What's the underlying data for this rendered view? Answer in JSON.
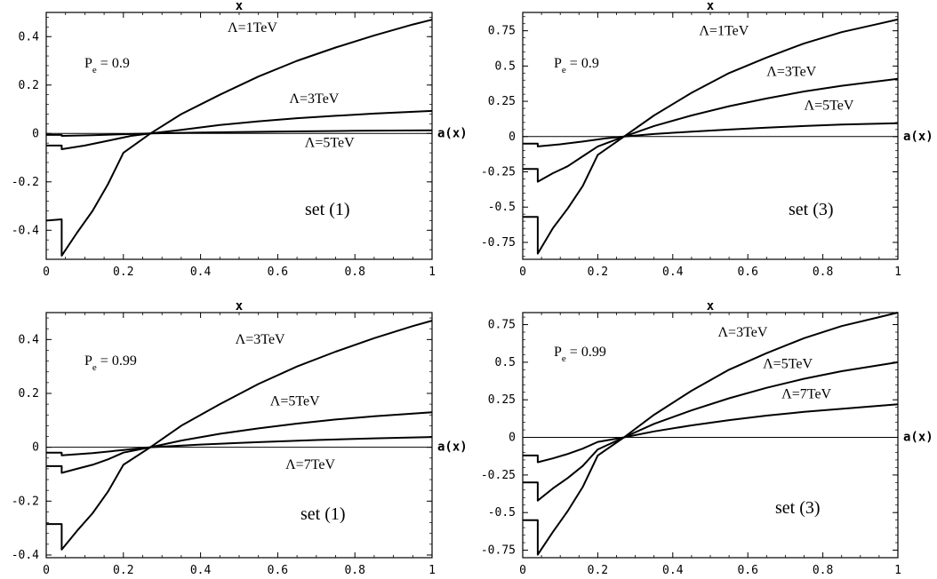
{
  "chart_data": [
    {
      "type": "line",
      "xlabel": "x",
      "ylabel": "a(x)",
      "xlim": [
        0,
        1
      ],
      "ylim": [
        -0.52,
        0.5
      ],
      "x_ticks": [
        0,
        0.2,
        0.4,
        0.6,
        0.8,
        1
      ],
      "x_tick_labels": [
        "0",
        "0.2",
        "0.4",
        "0.6",
        "0.8",
        "1"
      ],
      "y_ticks": [
        -0.4,
        -0.2,
        0,
        0.2,
        0.4
      ],
      "y_tick_labels": [
        "-0.4",
        "-0.2",
        "0",
        "0.2",
        "0.4"
      ],
      "polarization": {
        "main": "P",
        "sub": "e",
        "value": "= 0.9"
      },
      "set_label": "set (1)",
      "series": [
        {
          "name": "Λ=1TeV",
          "x": [
            0,
            0.04,
            0.04,
            0.08,
            0.12,
            0.16,
            0.2,
            0.27,
            0.35,
            0.45,
            0.55,
            0.65,
            0.75,
            0.85,
            0.95,
            1.0
          ],
          "y": [
            -0.36,
            -0.355,
            -0.505,
            -0.41,
            -0.32,
            -0.21,
            -0.08,
            0.0,
            0.08,
            0.16,
            0.235,
            0.3,
            0.355,
            0.405,
            0.45,
            0.47
          ]
        },
        {
          "name": "Λ=3TeV",
          "x": [
            0,
            0.04,
            0.04,
            0.1,
            0.16,
            0.22,
            0.27,
            0.35,
            0.45,
            0.55,
            0.65,
            0.75,
            0.85,
            1.0
          ],
          "y": [
            -0.05,
            -0.05,
            -0.065,
            -0.05,
            -0.03,
            -0.01,
            0.0,
            0.015,
            0.035,
            0.05,
            0.063,
            0.073,
            0.082,
            0.093
          ]
        },
        {
          "name": "Λ=5TeV",
          "x": [
            0,
            0.04,
            0.04,
            0.12,
            0.27,
            0.4,
            0.6,
            0.8,
            1.0
          ],
          "y": [
            -0.006,
            -0.006,
            -0.01,
            -0.007,
            0.0,
            0.004,
            0.008,
            0.011,
            0.013
          ]
        }
      ],
      "labels": [
        {
          "text": "Λ=1TeV",
          "x": 0.47,
          "y": 0.42
        },
        {
          "text": "Λ=3TeV",
          "x": 0.63,
          "y": 0.125
        },
        {
          "text": "Λ=5TeV",
          "x": 0.67,
          "y": -0.055
        }
      ]
    },
    {
      "type": "line",
      "xlabel": "x",
      "ylabel": "a(x)",
      "xlim": [
        0,
        1
      ],
      "ylim": [
        -0.87,
        0.88
      ],
      "x_ticks": [
        0,
        0.2,
        0.4,
        0.6,
        0.8,
        1
      ],
      "x_tick_labels": [
        "0",
        "0.2",
        "0.4",
        "0.6",
        "0.8",
        "1"
      ],
      "y_ticks": [
        -0.75,
        -0.5,
        -0.25,
        0,
        0.25,
        0.5,
        0.75
      ],
      "y_tick_labels": [
        "-0.75",
        "-0.5",
        "-0.25",
        "0",
        "0.25",
        "0.5",
        "0.75"
      ],
      "polarization": {
        "main": "P",
        "sub": "e",
        "value": "= 0.9"
      },
      "set_label": "set (3)",
      "series": [
        {
          "name": "Λ=1TeV",
          "x": [
            0,
            0.04,
            0.04,
            0.08,
            0.12,
            0.16,
            0.2,
            0.27,
            0.35,
            0.45,
            0.55,
            0.65,
            0.75,
            0.85,
            0.95,
            1.0
          ],
          "y": [
            -0.57,
            -0.57,
            -0.83,
            -0.65,
            -0.51,
            -0.35,
            -0.13,
            0.0,
            0.15,
            0.31,
            0.45,
            0.56,
            0.66,
            0.74,
            0.8,
            0.83
          ]
        },
        {
          "name": "Λ=3TeV",
          "x": [
            0,
            0.04,
            0.04,
            0.08,
            0.12,
            0.16,
            0.2,
            0.27,
            0.35,
            0.45,
            0.55,
            0.65,
            0.75,
            0.85,
            1.0
          ],
          "y": [
            -0.23,
            -0.23,
            -0.32,
            -0.26,
            -0.21,
            -0.14,
            -0.07,
            0.0,
            0.075,
            0.15,
            0.215,
            0.27,
            0.32,
            0.36,
            0.41
          ]
        },
        {
          "name": "Λ=5TeV",
          "x": [
            0,
            0.04,
            0.04,
            0.1,
            0.16,
            0.22,
            0.27,
            0.35,
            0.45,
            0.55,
            0.65,
            0.75,
            0.85,
            1.0
          ],
          "y": [
            -0.05,
            -0.05,
            -0.07,
            -0.055,
            -0.035,
            -0.013,
            0.0,
            0.018,
            0.035,
            0.05,
            0.063,
            0.075,
            0.085,
            0.095
          ]
        }
      ],
      "labels": [
        {
          "text": "Λ=1TeV",
          "x": 0.47,
          "y": 0.72
        },
        {
          "text": "Λ=3TeV",
          "x": 0.65,
          "y": 0.43
        },
        {
          "text": "Λ=5TeV",
          "x": 0.75,
          "y": 0.19
        }
      ]
    },
    {
      "type": "line",
      "xlabel": "x",
      "ylabel": "a(x)",
      "xlim": [
        0,
        1
      ],
      "ylim": [
        -0.41,
        0.5
      ],
      "x_ticks": [
        0,
        0.2,
        0.4,
        0.6,
        0.8,
        1
      ],
      "x_tick_labels": [
        "0",
        "0.2",
        "0.4",
        "0.6",
        "0.8",
        "1"
      ],
      "y_ticks": [
        -0.4,
        -0.2,
        0,
        0.2,
        0.4
      ],
      "y_tick_labels": [
        "-0.4",
        "-0.2",
        "0",
        "0.2",
        "0.4"
      ],
      "polarization": {
        "main": "P",
        "sub": "e",
        "value": "= 0.99"
      },
      "set_label": "set (1)",
      "series": [
        {
          "name": "Λ=3TeV",
          "x": [
            0,
            0.04,
            0.04,
            0.08,
            0.12,
            0.16,
            0.2,
            0.27,
            0.35,
            0.45,
            0.55,
            0.65,
            0.75,
            0.85,
            0.95,
            1.0
          ],
          "y": [
            -0.285,
            -0.285,
            -0.38,
            -0.31,
            -0.245,
            -0.165,
            -0.065,
            0.0,
            0.08,
            0.16,
            0.235,
            0.3,
            0.355,
            0.405,
            0.45,
            0.47
          ]
        },
        {
          "name": "Λ=5TeV",
          "x": [
            0,
            0.04,
            0.04,
            0.08,
            0.12,
            0.16,
            0.2,
            0.27,
            0.35,
            0.45,
            0.55,
            0.65,
            0.75,
            0.85,
            1.0
          ],
          "y": [
            -0.07,
            -0.07,
            -0.095,
            -0.08,
            -0.065,
            -0.045,
            -0.02,
            0.0,
            0.025,
            0.05,
            0.07,
            0.088,
            0.103,
            0.115,
            0.13
          ]
        },
        {
          "name": "Λ=7TeV",
          "x": [
            0,
            0.04,
            0.04,
            0.12,
            0.2,
            0.27,
            0.4,
            0.55,
            0.7,
            0.85,
            1.0
          ],
          "y": [
            -0.02,
            -0.02,
            -0.03,
            -0.022,
            -0.01,
            0.0,
            0.01,
            0.019,
            0.027,
            0.033,
            0.038
          ]
        }
      ],
      "labels": [
        {
          "text": "Λ=3TeV",
          "x": 0.49,
          "y": 0.385
        },
        {
          "text": "Λ=5TeV",
          "x": 0.58,
          "y": 0.155
        },
        {
          "text": "Λ=7TeV",
          "x": 0.62,
          "y": -0.08
        }
      ]
    },
    {
      "type": "line",
      "xlabel": "x",
      "ylabel": "a(x)",
      "xlim": [
        0,
        1
      ],
      "ylim": [
        -0.8,
        0.83
      ],
      "x_ticks": [
        0,
        0.2,
        0.4,
        0.6,
        0.8,
        1
      ],
      "x_tick_labels": [
        "0",
        "0.2",
        "0.4",
        "0.6",
        "0.8",
        "1"
      ],
      "y_ticks": [
        -0.75,
        -0.5,
        -0.25,
        0,
        0.25,
        0.5,
        0.75
      ],
      "y_tick_labels": [
        "-0.75",
        "-0.5",
        "-0.25",
        "0",
        "0.25",
        "0.5",
        "0.75"
      ],
      "polarization": {
        "main": "P",
        "sub": "e",
        "value": "= 0.99"
      },
      "set_label": "set (3)",
      "series": [
        {
          "name": "Λ=3TeV",
          "x": [
            0,
            0.04,
            0.04,
            0.08,
            0.12,
            0.16,
            0.2,
            0.27,
            0.35,
            0.45,
            0.55,
            0.65,
            0.75,
            0.85,
            0.95,
            1.0
          ],
          "y": [
            -0.55,
            -0.55,
            -0.78,
            -0.63,
            -0.49,
            -0.33,
            -0.12,
            0.0,
            0.15,
            0.31,
            0.45,
            0.56,
            0.66,
            0.74,
            0.8,
            0.83
          ]
        },
        {
          "name": "Λ=5TeV",
          "x": [
            0,
            0.04,
            0.04,
            0.08,
            0.12,
            0.16,
            0.2,
            0.27,
            0.35,
            0.45,
            0.55,
            0.65,
            0.75,
            0.85,
            1.0
          ],
          "y": [
            -0.3,
            -0.3,
            -0.42,
            -0.34,
            -0.27,
            -0.19,
            -0.08,
            0.0,
            0.09,
            0.18,
            0.26,
            0.33,
            0.39,
            0.44,
            0.5
          ]
        },
        {
          "name": "Λ=7TeV",
          "x": [
            0,
            0.04,
            0.04,
            0.08,
            0.12,
            0.16,
            0.2,
            0.27,
            0.35,
            0.45,
            0.55,
            0.65,
            0.75,
            0.85,
            1.0
          ],
          "y": [
            -0.12,
            -0.12,
            -0.165,
            -0.14,
            -0.11,
            -0.075,
            -0.03,
            0.0,
            0.04,
            0.08,
            0.115,
            0.145,
            0.17,
            0.19,
            0.22
          ]
        }
      ],
      "labels": [
        {
          "text": "Λ=3TeV",
          "x": 0.52,
          "y": 0.67
        },
        {
          "text": "Λ=5TeV",
          "x": 0.64,
          "y": 0.46
        },
        {
          "text": "Λ=7TeV",
          "x": 0.69,
          "y": 0.26
        }
      ]
    }
  ]
}
